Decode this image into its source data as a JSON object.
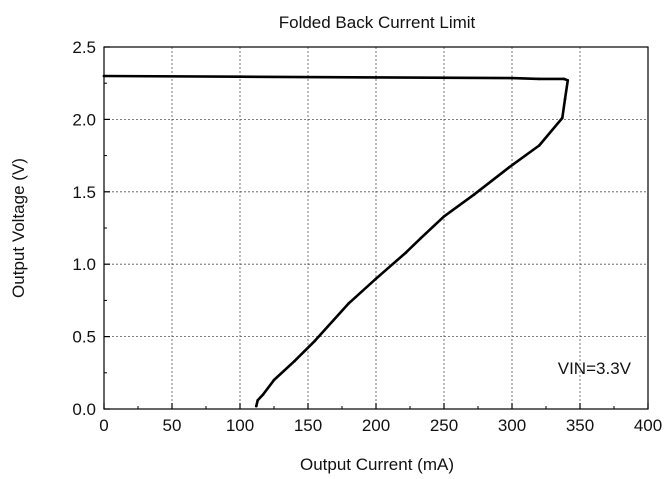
{
  "chart_data": {
    "type": "line",
    "title": "Folded Back Current Limit",
    "xlabel": "Output Current (mA)",
    "ylabel": "Output Voltage (V)",
    "xlim": [
      0,
      400
    ],
    "ylim": [
      0.0,
      2.5
    ],
    "xticks": [
      "0",
      "50",
      "100",
      "150",
      "200",
      "250",
      "300",
      "350",
      "400"
    ],
    "yticks": [
      "0.0",
      "0.5",
      "1.0",
      "1.5",
      "2.0",
      "2.5"
    ],
    "grid": true,
    "annotation": "VIN=3.3V",
    "series": [
      {
        "x": [
          0,
          100,
          200,
          300,
          320,
          338,
          341,
          339,
          337,
          320,
          298,
          272,
          250,
          233,
          222,
          200,
          180,
          155,
          140,
          125,
          117,
          113,
          112
        ],
        "y": [
          2.3,
          2.295,
          2.29,
          2.285,
          2.28,
          2.28,
          2.27,
          2.14,
          2.01,
          1.82,
          1.67,
          1.48,
          1.33,
          1.18,
          1.08,
          0.9,
          0.73,
          0.47,
          0.33,
          0.2,
          0.1,
          0.06,
          0.02
        ]
      }
    ],
    "line_color": "#000000"
  }
}
